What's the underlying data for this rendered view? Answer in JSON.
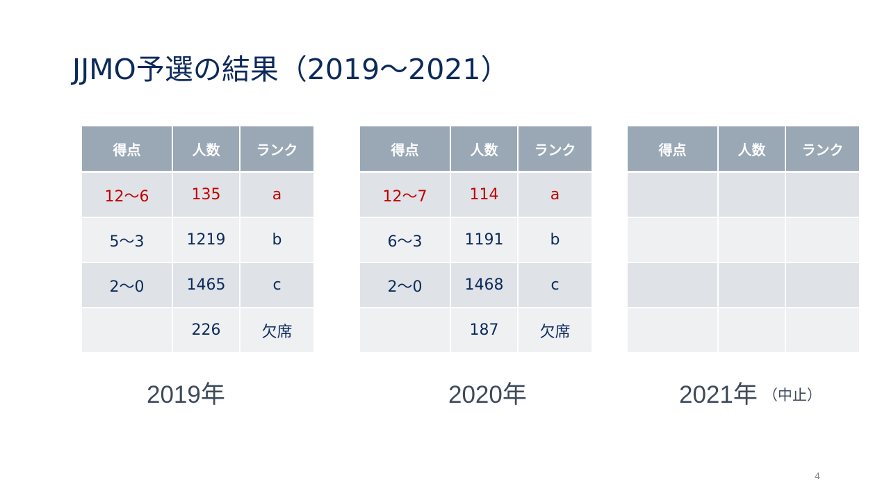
{
  "title": "JJMO予選の結果（2019～2021）",
  "headers": [
    "得点",
    "人数",
    "ランク"
  ],
  "tables": [
    {
      "year_label": "2019年",
      "rows": [
        {
          "score": "12～6",
          "count": "135",
          "rank": "a"
        },
        {
          "score": "5～3",
          "count": "1219",
          "rank": "b"
        },
        {
          "score": "2～0",
          "count": "1465",
          "rank": "c"
        },
        {
          "score": "",
          "count": "226",
          "rank": "欠席"
        }
      ]
    },
    {
      "year_label": "2020年",
      "rows": [
        {
          "score": "12～7",
          "count": "114",
          "rank": "a"
        },
        {
          "score": "6～3",
          "count": "1191",
          "rank": "b"
        },
        {
          "score": "2～0",
          "count": "1468",
          "rank": "c"
        },
        {
          "score": "",
          "count": "187",
          "rank": "欠席"
        }
      ]
    },
    {
      "year_label": "2021年",
      "note": "（中止）",
      "rows": [
        {
          "score": "",
          "count": "",
          "rank": ""
        },
        {
          "score": "",
          "count": "",
          "rank": ""
        },
        {
          "score": "",
          "count": "",
          "rank": ""
        },
        {
          "score": "",
          "count": "",
          "rank": ""
        }
      ]
    }
  ],
  "page_number": "4",
  "colors": {
    "title": "#0b2a5c",
    "header_bg": "#9aa8b5",
    "row_dark": "#dfe2e6",
    "row_light": "#eff0f2",
    "rank_a_text": "#c00000"
  }
}
